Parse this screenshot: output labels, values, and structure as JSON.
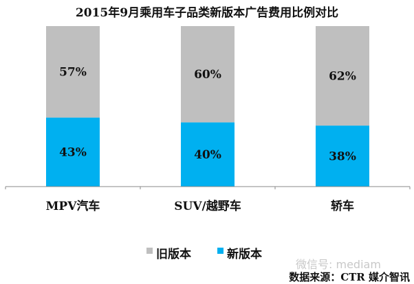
{
  "chart_data": {
    "type": "bar",
    "stacked": true,
    "title": "2015年9月乘用车子品类新版本广告费用比例对比",
    "categories": [
      "MPV汽车",
      "SUV/越野车",
      "轿车"
    ],
    "series": [
      {
        "name": "新版本",
        "values": [
          43,
          40,
          38
        ],
        "labels": [
          "43%",
          "40%",
          "38%"
        ],
        "color": "#00B0F0"
      },
      {
        "name": "旧版本",
        "values": [
          57,
          60,
          62
        ],
        "labels": [
          "57%",
          "60%",
          "62%"
        ],
        "color": "#BFBFBF"
      }
    ],
    "ylim": [
      0,
      100
    ],
    "grid": false,
    "legend": "bottom"
  },
  "legend": [
    {
      "label": "旧版本",
      "color": "#BFBFBF"
    },
    {
      "label": "新版本",
      "color": "#00B0F0"
    }
  ],
  "watermark": "微信号: mediam",
  "source": "数据来源：CTR 媒介智讯"
}
